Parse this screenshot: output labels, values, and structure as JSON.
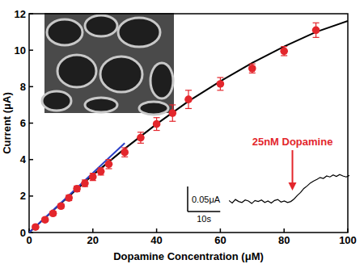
{
  "chart_data": [
    {
      "type": "scatter",
      "x_label": "Dopamine Concentration (μM)",
      "y_label": "Current (μA)",
      "xlim": [
        0,
        100
      ],
      "xticks": [
        0,
        20,
        40,
        60,
        80,
        100
      ],
      "ylim": [
        0,
        12
      ],
      "yticks": [
        0,
        2,
        4,
        6,
        8,
        10,
        12
      ],
      "grid": false,
      "series": [
        {
          "type": "scatter",
          "color": "#e3262c",
          "marker": "circle",
          "x": [
            2,
            5,
            7.5,
            10,
            12.5,
            15,
            17.5,
            20,
            22.5,
            25,
            30,
            35,
            40,
            45,
            50,
            60,
            70,
            80,
            90
          ],
          "values": [
            0.3,
            0.7,
            1.05,
            1.45,
            1.9,
            2.4,
            2.7,
            3.05,
            3.35,
            3.75,
            4.4,
            5.2,
            5.95,
            6.55,
            7.3,
            8.15,
            9.0,
            9.95,
            11.1
          ],
          "errors": [
            0.1,
            0.1,
            0.12,
            0.12,
            0.15,
            0.15,
            0.18,
            0.2,
            0.2,
            0.25,
            0.25,
            0.3,
            0.35,
            0.45,
            0.5,
            0.35,
            0.25,
            0.25,
            0.4
          ]
        },
        {
          "type": "line",
          "color": "#000000",
          "line_style": "solid",
          "x": [
            0,
            10,
            20,
            30,
            40,
            50,
            60,
            70,
            80,
            90,
            100
          ],
          "values": [
            0,
            1.6,
            3.15,
            4.6,
            5.95,
            7.2,
            8.3,
            9.3,
            10.2,
            11.0,
            11.6
          ]
        },
        {
          "type": "line",
          "color": "#2a3fc6",
          "line_style": "solid",
          "x": [
            0,
            30
          ],
          "values": [
            0,
            4.9
          ]
        }
      ]
    },
    {
      "type": "line",
      "color": "#000000",
      "tick_labels": false,
      "xlim": [
        0,
        37
      ],
      "ylim": [
        -0.02,
        0.08
      ],
      "x": [
        0,
        1,
        2,
        3,
        4,
        5,
        6,
        7,
        8,
        9,
        10,
        11,
        12,
        13,
        14,
        15,
        16,
        17,
        18,
        19,
        20,
        21,
        22,
        23,
        24,
        25,
        26,
        27,
        28,
        29,
        30,
        31,
        32,
        33,
        34,
        35,
        36,
        37
      ],
      "values": [
        0.002,
        -0.003,
        0.004,
        0.0,
        -0.002,
        0.003,
        0.001,
        -0.004,
        0.002,
        0.0,
        0.003,
        -0.002,
        0.001,
        -0.003,
        0.002,
        0.004,
        -0.001,
        0.001,
        -0.002,
        0.0,
        0.005,
        0.012,
        0.018,
        0.026,
        0.031,
        0.037,
        0.041,
        0.044,
        0.048,
        0.046,
        0.051,
        0.049,
        0.053,
        0.05,
        0.054,
        0.051,
        0.049,
        0.052
      ],
      "annotations": [
        {
          "text": "25nM Dopamine",
          "x": 19.5,
          "color": "#e3262c"
        }
      ],
      "scale_bars": [
        {
          "axis": "y",
          "value": 0.05,
          "label": "0.05μA"
        },
        {
          "axis": "x",
          "value": 10,
          "label": "10s"
        }
      ]
    }
  ]
}
